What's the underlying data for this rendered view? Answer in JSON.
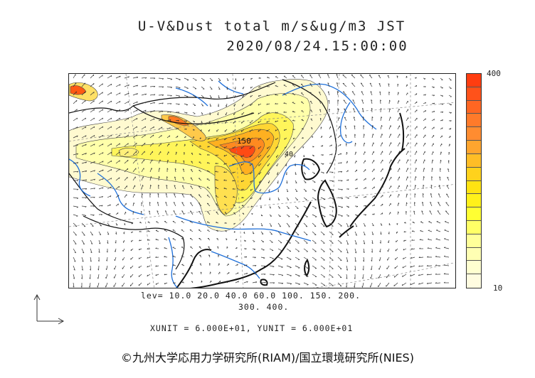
{
  "title": {
    "line1": "U-V&Dust total m/s&ug/m3 JST",
    "line2": "2020/08/24.15:00:00"
  },
  "colorbar": {
    "max_label": "400",
    "min_label": "10",
    "colors": [
      "#fffce0",
      "#ffffd0",
      "#ffffb3",
      "#ffff99",
      "#ffff66",
      "#ffff33",
      "#fff11a",
      "#ffe312",
      "#ffd21c",
      "#ffbd26",
      "#ffa52e",
      "#ff8c30",
      "#ff7a2a",
      "#ff6622",
      "#ff521a",
      "#ff3d10"
    ]
  },
  "legend": {
    "levels_line1": "lev= 10.0 20.0 40.0 60.0 100. 150. 200.",
    "levels_line2": "300. 400.",
    "unit_line": "XUNIT = 6.000E+01, YUNIT = 6.000E+01"
  },
  "contour_labels": [
    "150",
    "40"
  ],
  "colors": {
    "coast": "#111111",
    "river": "#1e6fd9",
    "arrow": "#333333",
    "grid": "#777777"
  },
  "credit": "©九州大学応用力学研究所(RIAM)/国立環境研究所(NIES)"
}
